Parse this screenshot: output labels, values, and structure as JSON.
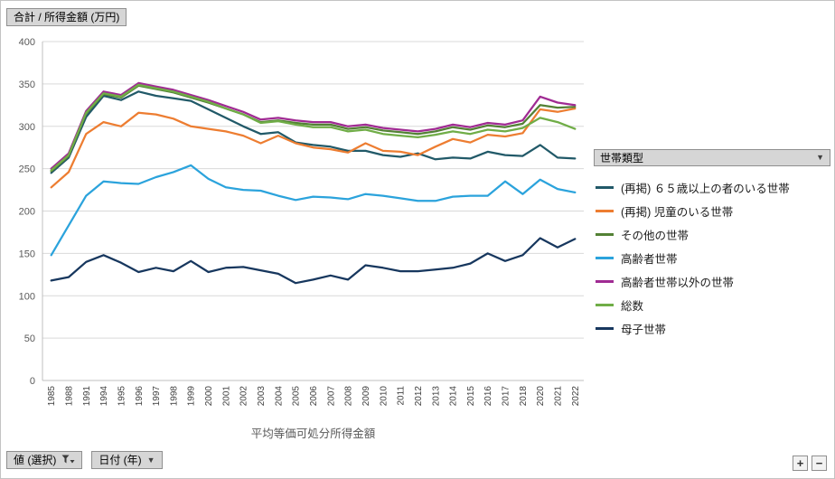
{
  "field_buttons": {
    "value_field": "合計 / 所得金額 (万円)",
    "value_select": "値 (選択)",
    "date_field": "日付 (年)"
  },
  "legend": {
    "header": "世帯類型"
  },
  "zoom_controls": {
    "plus": "+",
    "minus": "−"
  },
  "chart_data": {
    "type": "line",
    "title": "合計 / 所得金額 (万円)",
    "xlabel": "平均等価可処分所得金額",
    "ylabel": "",
    "ylim": [
      0,
      400
    ],
    "ytick_interval": 50,
    "grid": true,
    "legend_title": "世帯類型",
    "legend_position": "right",
    "x": [
      "1985",
      "1988",
      "1991",
      "1994",
      "1995",
      "1996",
      "1997",
      "1998",
      "1999",
      "2000",
      "2001",
      "2002",
      "2003",
      "2004",
      "2005",
      "2006",
      "2007",
      "2008",
      "2009",
      "2010",
      "2011",
      "2012",
      "2013",
      "2014",
      "2015",
      "2016",
      "2017",
      "2018",
      "2020",
      "2021",
      "2022"
    ],
    "series": [
      {
        "name": "(再掲) ６５歳以上の者のいる世帯",
        "color": "#215968",
        "values": [
          245,
          263,
          311,
          336,
          331,
          341,
          336,
          333,
          330,
          320,
          310,
          300,
          291,
          293,
          281,
          278,
          276,
          271,
          271,
          266,
          264,
          268,
          261,
          263,
          262,
          270,
          266,
          265,
          278,
          263,
          262
        ]
      },
      {
        "name": "(再掲) 児童のいる世帯",
        "color": "#ED7D31",
        "values": [
          228,
          246,
          291,
          305,
          300,
          316,
          314,
          309,
          300,
          297,
          294,
          289,
          280,
          289,
          280,
          275,
          273,
          269,
          280,
          271,
          270,
          266,
          276,
          285,
          281,
          290,
          288,
          292,
          320,
          317,
          321
        ]
      },
      {
        "name": "その他の世帯",
        "color": "#538135",
        "values": [
          247,
          265,
          315,
          338,
          334,
          348,
          344,
          340,
          334,
          328,
          321,
          314,
          305,
          307,
          304,
          302,
          302,
          297,
          299,
          295,
          293,
          291,
          294,
          299,
          296,
          301,
          299,
          303,
          325,
          322,
          323
        ]
      },
      {
        "name": "高齢者世帯",
        "color": "#2BA3DC",
        "values": [
          148,
          183,
          218,
          235,
          233,
          232,
          240,
          246,
          254,
          238,
          228,
          225,
          224,
          218,
          213,
          217,
          216,
          214,
          220,
          218,
          215,
          212,
          212,
          217,
          218,
          218,
          235,
          220,
          237,
          226,
          222
        ]
      },
      {
        "name": "高齢者世帯以外の世帯",
        "color": "#A02B93",
        "values": [
          250,
          268,
          318,
          341,
          337,
          351,
          347,
          343,
          337,
          331,
          324,
          317,
          308,
          310,
          307,
          305,
          305,
          300,
          302,
          298,
          296,
          294,
          297,
          302,
          299,
          304,
          302,
          307,
          335,
          328,
          325
        ]
      },
      {
        "name": "総数",
        "color": "#70AD47",
        "values": [
          248,
          266,
          316,
          339,
          335,
          349,
          345,
          341,
          335,
          329,
          321,
          314,
          304,
          306,
          302,
          299,
          299,
          294,
          296,
          291,
          289,
          287,
          290,
          294,
          291,
          296,
          294,
          298,
          310,
          305,
          297
        ]
      },
      {
        "name": "母子世帯",
        "color": "#17375E",
        "values": [
          118,
          122,
          140,
          148,
          139,
          128,
          133,
          129,
          141,
          128,
          133,
          134,
          130,
          126,
          115,
          119,
          124,
          119,
          136,
          133,
          129,
          129,
          131,
          133,
          138,
          150,
          141,
          148,
          168,
          157,
          167
        ]
      }
    ]
  }
}
